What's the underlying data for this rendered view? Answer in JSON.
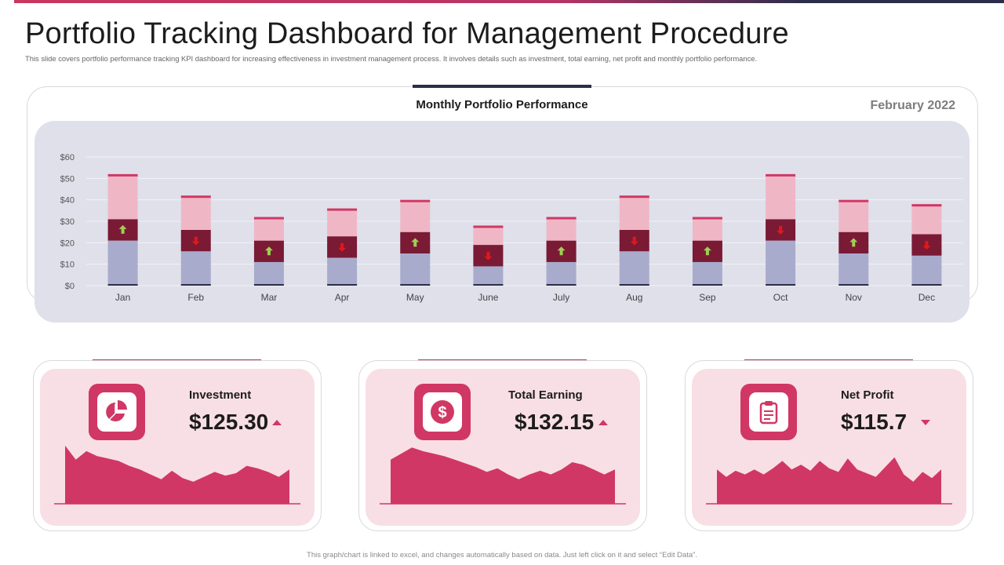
{
  "page": {
    "title": "Portfolio Tracking Dashboard for Management Procedure",
    "subtitle": "This slide covers portfolio performance tracking KPI dashboard for increasing effectiveness in investment management process. It involves details such as investment, total earning, net profit and monthly portfolio performance.",
    "footer": "This graph/chart is linked to excel, and changes automatically based on data. Just left click on it and select “Edit Data”."
  },
  "colors": {
    "accent": "#d13764",
    "navy": "#2b2d4a",
    "bar_bottom": "#a9abcc",
    "bar_middle": "#7a1a35",
    "bar_top": "#efb7c6",
    "bar_cap": "#d13764",
    "arrow_up": "#9fcf55",
    "arrow_down": "#e01818",
    "panel_bg": "#dfe0ea"
  },
  "chart_data": {
    "type": "bar",
    "stacked": true,
    "title": "Monthly Portfolio Performance",
    "date_label": "February 2022",
    "categories": [
      "Jan",
      "Feb",
      "Mar",
      "Apr",
      "May",
      "June",
      "July",
      "Aug",
      "Sep",
      "Oct",
      "Nov",
      "Dec"
    ],
    "series": [
      {
        "values": [
          21,
          16,
          11,
          13,
          15,
          9,
          11,
          16,
          11,
          21,
          15,
          14
        ]
      },
      {
        "values": [
          10,
          10,
          10,
          10,
          10,
          10,
          10,
          10,
          10,
          10,
          10,
          10
        ]
      },
      {
        "values": [
          20,
          15,
          10,
          12,
          14,
          8,
          10,
          15,
          10,
          20,
          14,
          13
        ]
      }
    ],
    "totals": [
      52,
      42,
      32,
      36,
      40,
      28,
      32,
      42,
      32,
      52,
      40,
      38
    ],
    "trend_markers": [
      "up",
      "down",
      "up",
      "down",
      "up",
      "down",
      "up",
      "down",
      "up",
      "down",
      "up",
      "down"
    ],
    "y_ticks": [
      "$0",
      "$10",
      "$20",
      "$30",
      "$40",
      "$50",
      "$60"
    ],
    "ylim": [
      0,
      60
    ],
    "grid": true,
    "legend": "none"
  },
  "kpis": [
    {
      "label": "Investment",
      "value": "$125.30",
      "trend": "up",
      "icon": "pie-chart-icon",
      "spark": [
        0.95,
        0.72,
        0.86,
        0.78,
        0.74,
        0.7,
        0.62,
        0.56,
        0.48,
        0.4,
        0.54,
        0.42,
        0.36,
        0.44,
        0.52,
        0.46,
        0.5,
        0.62,
        0.58,
        0.52,
        0.44,
        0.56
      ]
    },
    {
      "label": "Total Earning",
      "value": "$132.15",
      "trend": "up",
      "icon": "dollar-coin-icon",
      "spark": [
        0.72,
        0.82,
        0.92,
        0.86,
        0.82,
        0.78,
        0.72,
        0.66,
        0.6,
        0.52,
        0.58,
        0.48,
        0.4,
        0.48,
        0.54,
        0.48,
        0.56,
        0.68,
        0.64,
        0.56,
        0.48,
        0.56
      ]
    },
    {
      "label": "Net Profit",
      "value": "$115.7",
      "trend": "down",
      "icon": "clipboard-icon",
      "spark": [
        0.56,
        0.44,
        0.54,
        0.48,
        0.56,
        0.48,
        0.58,
        0.7,
        0.56,
        0.64,
        0.54,
        0.7,
        0.58,
        0.52,
        0.74,
        0.56,
        0.5,
        0.44,
        0.6,
        0.76,
        0.48,
        0.36,
        0.52,
        0.42,
        0.56
      ]
    }
  ]
}
